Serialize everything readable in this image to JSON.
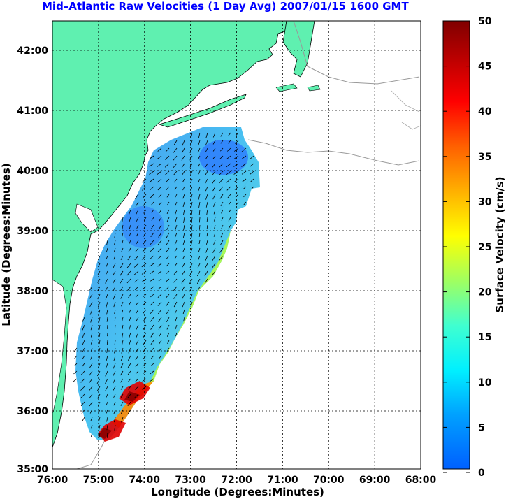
{
  "title": "Mid–Atlantic Raw Velocities (1 Day Avg) 2007/01/15 1600 GMT",
  "xlabel": "Longitude (Degrees:Minutes)",
  "ylabel": "Latitude (Degrees:Minutes)",
  "colorbar_label": "Surface Velocity (cm/s)",
  "x_ticks": [
    "76:00",
    "75:00",
    "74:00",
    "73:00",
    "72:00",
    "71:00",
    "70:00",
    "69:00",
    "68:00"
  ],
  "y_ticks": [
    "42:00",
    "41:00",
    "40:00",
    "39:00",
    "38:00",
    "37:00",
    "36:00",
    "35:00"
  ],
  "colorbar_ticks": [
    "50",
    "45",
    "40",
    "35",
    "30",
    "25",
    "20",
    "15",
    "10",
    "5",
    "0"
  ],
  "colors": {
    "land": "#5ff0b0",
    "title": "#0000ff",
    "grid": "#000000",
    "coast": "#999999"
  }
}
